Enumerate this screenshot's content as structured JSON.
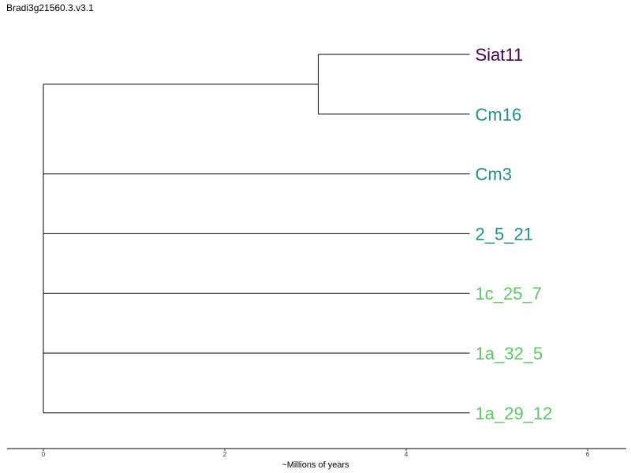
{
  "title": "Bradi3g21560.3.v3.1",
  "axis": {
    "label": "~Millions of years",
    "ticks": [
      0,
      2,
      4,
      6
    ],
    "range": [
      -0.4,
      6.4
    ]
  },
  "tree": {
    "leaf_depth": 4.7,
    "root_depth": 0,
    "leaves": [
      {
        "name": "Siat11",
        "color": "#440154"
      },
      {
        "name": "Cm16",
        "color": "#21908C"
      },
      {
        "name": "Cm3",
        "color": "#21908C"
      },
      {
        "name": "2_5_21",
        "color": "#21908C"
      },
      {
        "name": "1c_25_7",
        "color": "#5DC863"
      },
      {
        "name": "1a_32_5",
        "color": "#5DC863"
      },
      {
        "name": "1a_29_12",
        "color": "#5DC863"
      }
    ],
    "clades": [
      {
        "members": [
          "Siat11",
          "Cm16"
        ],
        "depth": 3.03
      }
    ]
  }
}
